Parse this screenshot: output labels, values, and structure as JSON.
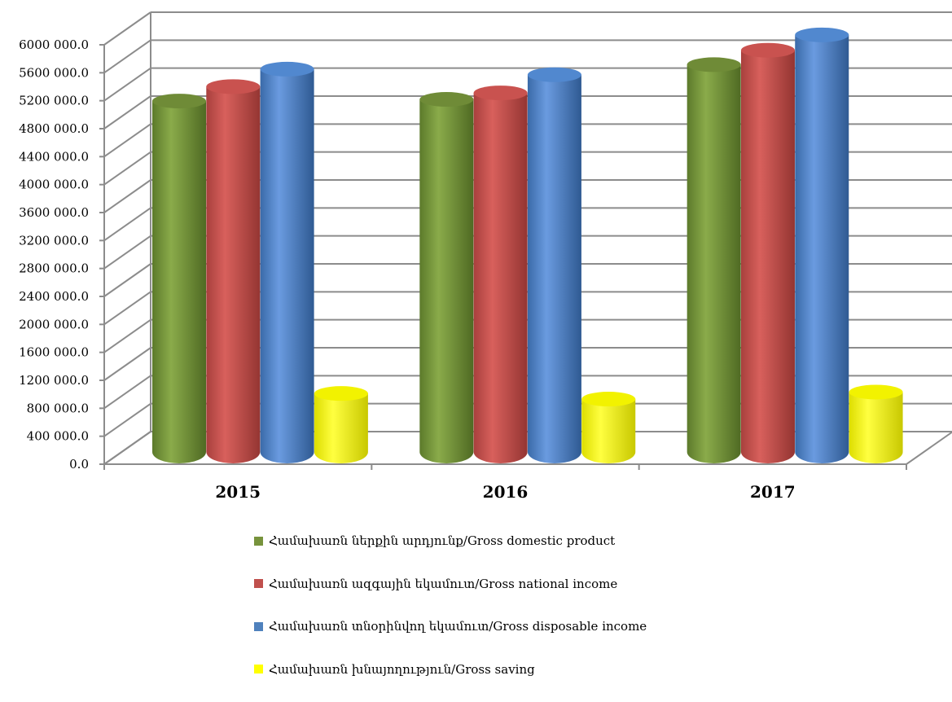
{
  "chart_data": {
    "type": "bar",
    "style": "3d-cylinder",
    "categories": [
      "2015",
      "2016",
      "2017"
    ],
    "series": [
      {
        "name": "Համախառն ներքին  արդյունք/Gross domestic product",
        "color": "#77933c",
        "values": [
          5043600,
          5067300,
          5564500
        ]
      },
      {
        "name": "Համախառն ազգային եկամուտ/Gross national income",
        "color": "#c0504d",
        "values": [
          5250000,
          5160000,
          5770000
        ]
      },
      {
        "name": "Համախառն տնօրինվող  եկամուտ/Gross disposable income",
        "color": "#4f81bd",
        "values": [
          5500000,
          5420000,
          5990000
        ]
      },
      {
        "name": "Համախառն խնայողություն/Gross  saving",
        "color": "#ffff00",
        "values": [
          860000,
          780000,
          880000
        ]
      }
    ],
    "ylim": [
      0,
      6000000
    ],
    "yticks": [
      "0.0",
      "400 000.0",
      "800 000.0",
      "1200 000.0",
      "1600 000.0",
      "2000 000.0",
      "2400 000.0",
      "2800 000.0",
      "3200 000.0",
      "3600 000.0",
      "4000 000.0",
      "4400 000.0",
      "4800 000.0",
      "5200 000.0",
      "5600 000.0",
      "6000 000.0"
    ],
    "grid": true,
    "legend_position": "bottom"
  }
}
